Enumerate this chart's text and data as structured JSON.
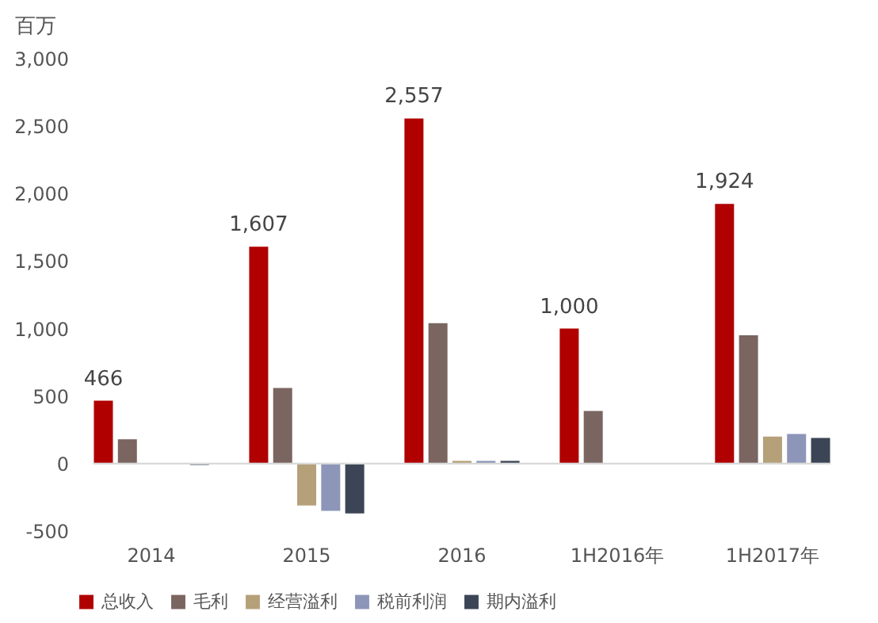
{
  "chart_data": {
    "type": "bar",
    "ylabel": "百万",
    "categories": [
      "2014",
      "2015",
      "2016",
      "1H2016年",
      "1H2017年"
    ],
    "series": [
      {
        "name": "总收入",
        "color": "#b00000",
        "values": [
          466,
          1607,
          2557,
          1000,
          1924
        ],
        "value_labels": [
          "466",
          "1,607",
          "2,557",
          "1,000",
          "1,924"
        ]
      },
      {
        "name": "毛利",
        "color": "#7a6560",
        "values": [
          180,
          560,
          1040,
          390,
          950
        ]
      },
      {
        "name": "经营溢利",
        "color": "#b5a07a",
        "values": [
          0,
          -310,
          20,
          0,
          200
        ]
      },
      {
        "name": "税前利润",
        "color": "#8d96b8",
        "values": [
          0,
          -350,
          20,
          0,
          220
        ]
      },
      {
        "name": "期内溢利",
        "color": "#3b4556",
        "values": [
          -10,
          -370,
          20,
          0,
          190
        ]
      }
    ],
    "ylim": [
      -500,
      3000
    ],
    "yticks": [
      {
        "value": -500,
        "label": "-500"
      },
      0,
      {
        "value": 500,
        "label": "500"
      },
      {
        "value": 1000,
        "label": "1,000"
      },
      {
        "value": 1500,
        "label": "1,500"
      },
      {
        "value": 2000,
        "label": "2,000"
      },
      {
        "value": 2500,
        "label": "2,500"
      },
      {
        "value": 3000,
        "label": "3,000"
      }
    ],
    "legend": "bottom"
  }
}
